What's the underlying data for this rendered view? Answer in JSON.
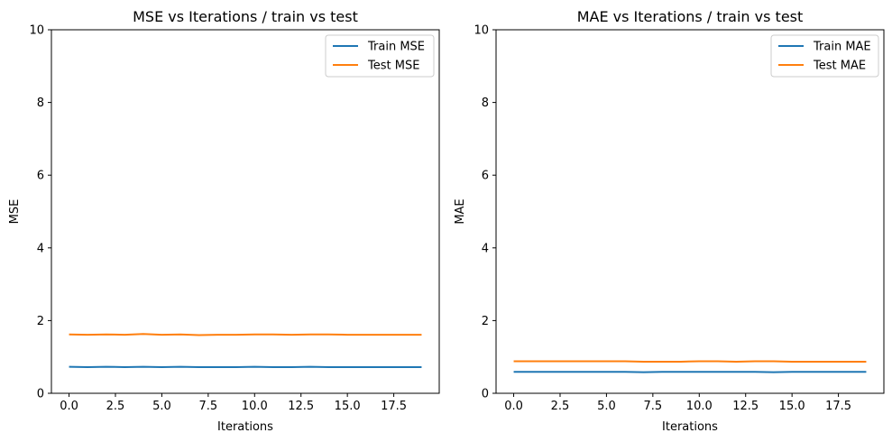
{
  "chart_data": [
    {
      "type": "line",
      "title": "MSE vs Iterations / train vs test",
      "xlabel": "Iterations",
      "ylabel": "MSE",
      "xlim": [
        -0.95,
        19.95
      ],
      "ylim": [
        0,
        10
      ],
      "xticks": [
        0.0,
        2.5,
        5.0,
        7.5,
        10.0,
        12.5,
        15.0,
        17.5
      ],
      "xtick_labels": [
        "0.0",
        "2.5",
        "5.0",
        "7.5",
        "10.0",
        "12.5",
        "15.0",
        "17.5"
      ],
      "yticks": [
        0,
        2,
        4,
        6,
        8,
        10
      ],
      "ytick_labels": [
        "0",
        "2",
        "4",
        "6",
        "8",
        "10"
      ],
      "grid": false,
      "legend": "upper right",
      "x": [
        0,
        1,
        2,
        3,
        4,
        5,
        6,
        7,
        8,
        9,
        10,
        11,
        12,
        13,
        14,
        15,
        16,
        17,
        18,
        19
      ],
      "series": [
        {
          "name": "Train MSE",
          "color": "#1f77b4",
          "values": [
            0.73,
            0.72,
            0.73,
            0.72,
            0.73,
            0.72,
            0.73,
            0.72,
            0.72,
            0.72,
            0.73,
            0.72,
            0.72,
            0.73,
            0.72,
            0.72,
            0.72,
            0.72,
            0.72,
            0.72
          ]
        },
        {
          "name": "Test MSE",
          "color": "#ff7f0e",
          "values": [
            1.62,
            1.61,
            1.62,
            1.61,
            1.63,
            1.61,
            1.62,
            1.6,
            1.61,
            1.61,
            1.62,
            1.62,
            1.61,
            1.62,
            1.62,
            1.61,
            1.61,
            1.61,
            1.61,
            1.61
          ]
        }
      ]
    },
    {
      "type": "line",
      "title": "MAE vs Iterations / train vs test",
      "xlabel": "Iterations",
      "ylabel": "MAE",
      "xlim": [
        -0.95,
        19.95
      ],
      "ylim": [
        0,
        10
      ],
      "xticks": [
        0.0,
        2.5,
        5.0,
        7.5,
        10.0,
        12.5,
        15.0,
        17.5
      ],
      "xtick_labels": [
        "0.0",
        "2.5",
        "5.0",
        "7.5",
        "10.0",
        "12.5",
        "15.0",
        "17.5"
      ],
      "yticks": [
        0,
        2,
        4,
        6,
        8,
        10
      ],
      "ytick_labels": [
        "0",
        "2",
        "4",
        "6",
        "8",
        "10"
      ],
      "grid": false,
      "legend": "upper right",
      "x": [
        0,
        1,
        2,
        3,
        4,
        5,
        6,
        7,
        8,
        9,
        10,
        11,
        12,
        13,
        14,
        15,
        16,
        17,
        18,
        19
      ],
      "series": [
        {
          "name": "Train MAE",
          "color": "#1f77b4",
          "values": [
            0.59,
            0.59,
            0.59,
            0.59,
            0.59,
            0.59,
            0.59,
            0.58,
            0.59,
            0.59,
            0.59,
            0.59,
            0.59,
            0.59,
            0.58,
            0.59,
            0.59,
            0.59,
            0.59,
            0.59
          ]
        },
        {
          "name": "Test MAE",
          "color": "#ff7f0e",
          "values": [
            0.88,
            0.88,
            0.88,
            0.88,
            0.88,
            0.88,
            0.88,
            0.87,
            0.87,
            0.87,
            0.88,
            0.88,
            0.87,
            0.88,
            0.88,
            0.87,
            0.87,
            0.87,
            0.87,
            0.87
          ]
        }
      ]
    }
  ]
}
